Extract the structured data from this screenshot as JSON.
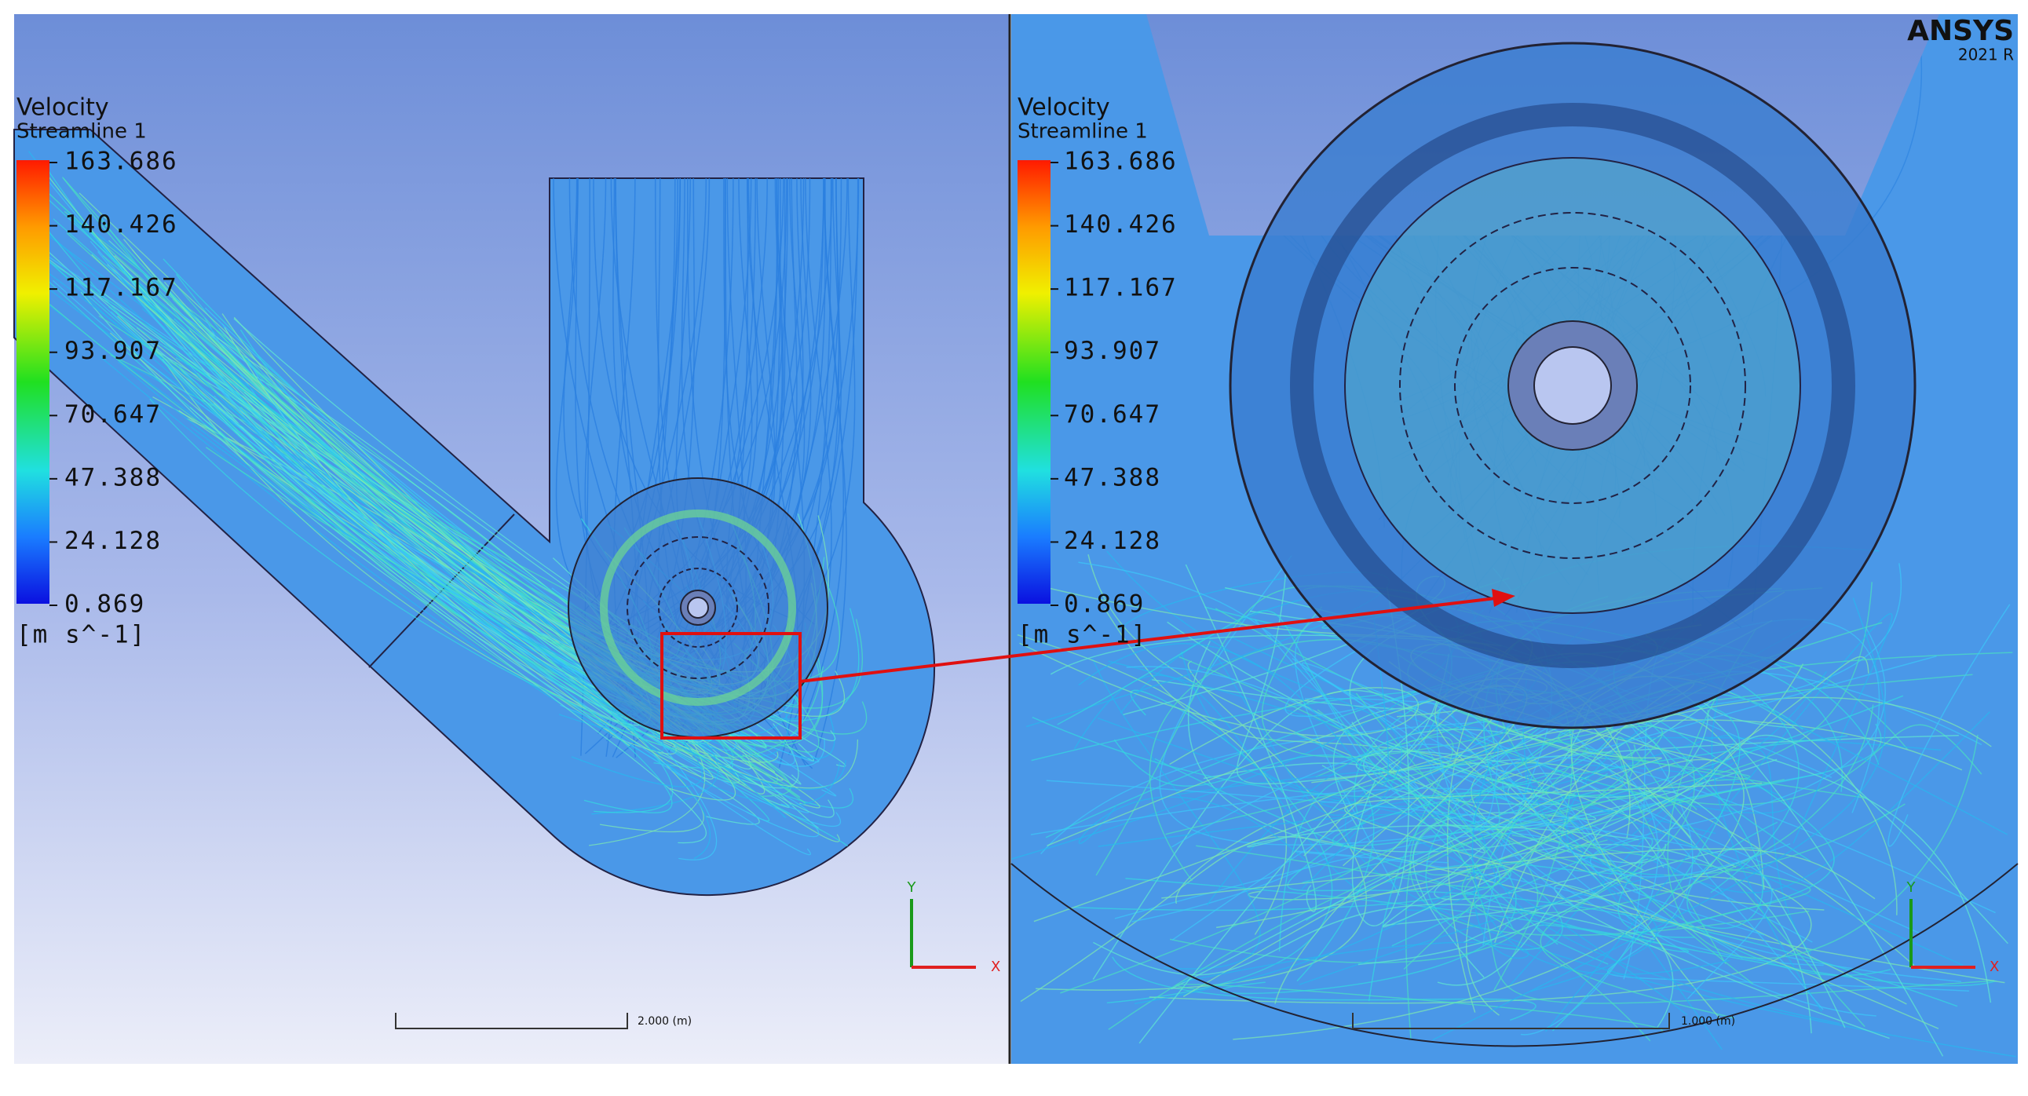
{
  "left_panel": {
    "legend": {
      "title": "Velocity",
      "subtitle": "Streamline 1",
      "labels": [
        "163.686",
        "140.426",
        "117.167",
        "93.907",
        "70.647",
        "47.388",
        "24.128",
        "0.869"
      ],
      "units": "[m s^-1]"
    },
    "axes": {
      "y": "Y",
      "x": "X"
    },
    "scale_bar": "2.000 (m)"
  },
  "right_panel": {
    "legend": {
      "title": "Velocity",
      "subtitle": "Streamline 1",
      "labels": [
        "163.686",
        "140.426",
        "117.167",
        "93.907",
        "70.647",
        "47.388",
        "24.128",
        "0.869"
      ],
      "units": "[m s^-1]"
    },
    "axes": {
      "y": "Y",
      "x": "X"
    },
    "scale_bar": "1.000 (m)"
  },
  "watermark": {
    "brand": "ANSYS",
    "version": "2021 R"
  }
}
